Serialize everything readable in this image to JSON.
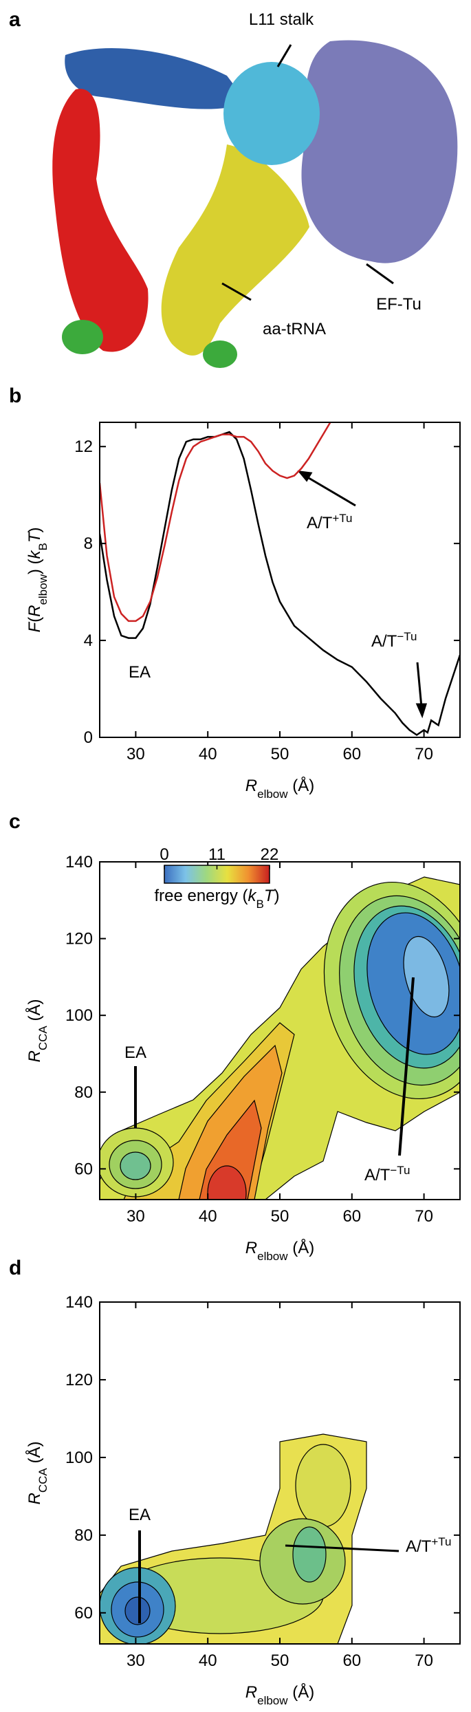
{
  "panel_a": {
    "label": "a",
    "annotations": [
      "L11 stalk",
      "aa-tRNA",
      "EF-Tu"
    ]
  },
  "chart_data": [
    {
      "type": "line",
      "panel_label": "b",
      "xlabel": [
        {
          "text": "R",
          "style": "italic"
        },
        {
          "text": "elbow",
          "style": "sub"
        },
        {
          "text": " (Å)"
        }
      ],
      "ylabel": [
        {
          "text": "F",
          "style": "italic"
        },
        {
          "text": "("
        },
        {
          "text": "R",
          "style": "italic"
        },
        {
          "text": "elbow",
          "style": "sub"
        },
        {
          "text": ") ("
        },
        {
          "text": "k",
          "style": "italic"
        },
        {
          "text": "B",
          "style": "sub"
        },
        {
          "text": "T",
          "style": "italic"
        },
        {
          "text": ")"
        }
      ],
      "xlim": [
        25,
        75
      ],
      "ylim": [
        0,
        13
      ],
      "xticks": [
        30,
        40,
        50,
        60,
        70
      ],
      "yticks": [
        0,
        4,
        8,
        12
      ],
      "series": [
        {
          "color": "#000000",
          "x": [
            25,
            26,
            27,
            28,
            29,
            30,
            31,
            32,
            33,
            34,
            35,
            36,
            37,
            38,
            39,
            40,
            41,
            42,
            43,
            44,
            45,
            46,
            47,
            48,
            49,
            50,
            52,
            54,
            56,
            58,
            60,
            62,
            64,
            66,
            67,
            68,
            69,
            70,
            70.5,
            71,
            72,
            73,
            74,
            75
          ],
          "values": [
            8.4,
            6.5,
            5,
            4.2,
            4.1,
            4.1,
            4.5,
            5.5,
            7,
            8.6,
            10.2,
            11.5,
            12.2,
            12.3,
            12.3,
            12.4,
            12.4,
            12.5,
            12.6,
            12.3,
            11.5,
            10.2,
            8.8,
            7.5,
            6.4,
            5.6,
            4.6,
            4.1,
            3.6,
            3.2,
            2.9,
            2.3,
            1.6,
            1,
            0.6,
            0.3,
            0.1,
            0.3,
            0.2,
            0.7,
            0.5,
            1.6,
            2.5,
            3.4
          ]
        },
        {
          "color": "#cc2222",
          "x": [
            25,
            26,
            27,
            28,
            29,
            30,
            31,
            32,
            33,
            34,
            35,
            36,
            37,
            38,
            39,
            40,
            41,
            42,
            43,
            44,
            45,
            46,
            47,
            48,
            49,
            50,
            51,
            52,
            53,
            54,
            55,
            56,
            57
          ],
          "values": [
            10.5,
            7.5,
            5.8,
            5.1,
            4.8,
            4.8,
            5,
            5.6,
            6.6,
            7.9,
            9.3,
            10.6,
            11.5,
            12,
            12.2,
            12.3,
            12.4,
            12.5,
            12.5,
            12.4,
            12.4,
            12.2,
            11.8,
            11.3,
            11,
            10.8,
            10.7,
            10.8,
            11.1,
            11.5,
            12,
            12.5,
            13
          ]
        }
      ],
      "annotations": [
        {
          "text": "EA"
        },
        {
          "text": "A/T",
          "sup": "+Tu"
        },
        {
          "text": "A/T",
          "sup": "−Tu"
        }
      ]
    },
    {
      "type": "contour",
      "panel_label": "c",
      "xlabel": [
        {
          "text": "R",
          "style": "italic"
        },
        {
          "text": "elbow",
          "style": "sub"
        },
        {
          "text": " (Å)"
        }
      ],
      "ylabel": [
        {
          "text": "R",
          "style": "italic"
        },
        {
          "text": "CCA",
          "style": "sub"
        },
        {
          "text": " (Å)"
        }
      ],
      "xlim": [
        25,
        75
      ],
      "ylim": [
        52,
        140
      ],
      "xticks": [
        30,
        40,
        50,
        60,
        70
      ],
      "yticks": [
        60,
        80,
        100,
        120,
        140
      ],
      "colorbar": {
        "clim": [
          0,
          22
        ],
        "ticks": [
          0,
          11,
          22
        ],
        "colors": [
          "#3b6fc0",
          "#7cc2e8",
          "#9fd880",
          "#e8e040",
          "#f09030",
          "#c82020"
        ],
        "label": [
          {
            "text": "free energy ("
          },
          {
            "text": "k",
            "style": "italic"
          },
          {
            "text": "B",
            "style": "sub"
          },
          {
            "text": "T",
            "style": "italic"
          },
          {
            "text": ")"
          }
        ]
      },
      "annotations": [
        {
          "text": "EA"
        },
        {
          "text": "A/T",
          "sup": "−Tu"
        }
      ]
    },
    {
      "type": "contour",
      "panel_label": "d",
      "xlabel": [
        {
          "text": "R",
          "style": "italic"
        },
        {
          "text": "elbow",
          "style": "sub"
        },
        {
          "text": " (Å)"
        }
      ],
      "ylabel": [
        {
          "text": "R",
          "style": "italic"
        },
        {
          "text": "CCA",
          "style": "sub"
        },
        {
          "text": " (Å)"
        }
      ],
      "xlim": [
        25,
        75
      ],
      "ylim": [
        52,
        140
      ],
      "xticks": [
        30,
        40,
        50,
        60,
        70
      ],
      "yticks": [
        60,
        80,
        100,
        120,
        140
      ],
      "annotations": [
        {
          "text": "EA"
        },
        {
          "text": "A/T",
          "sup": "+Tu"
        }
      ]
    }
  ]
}
